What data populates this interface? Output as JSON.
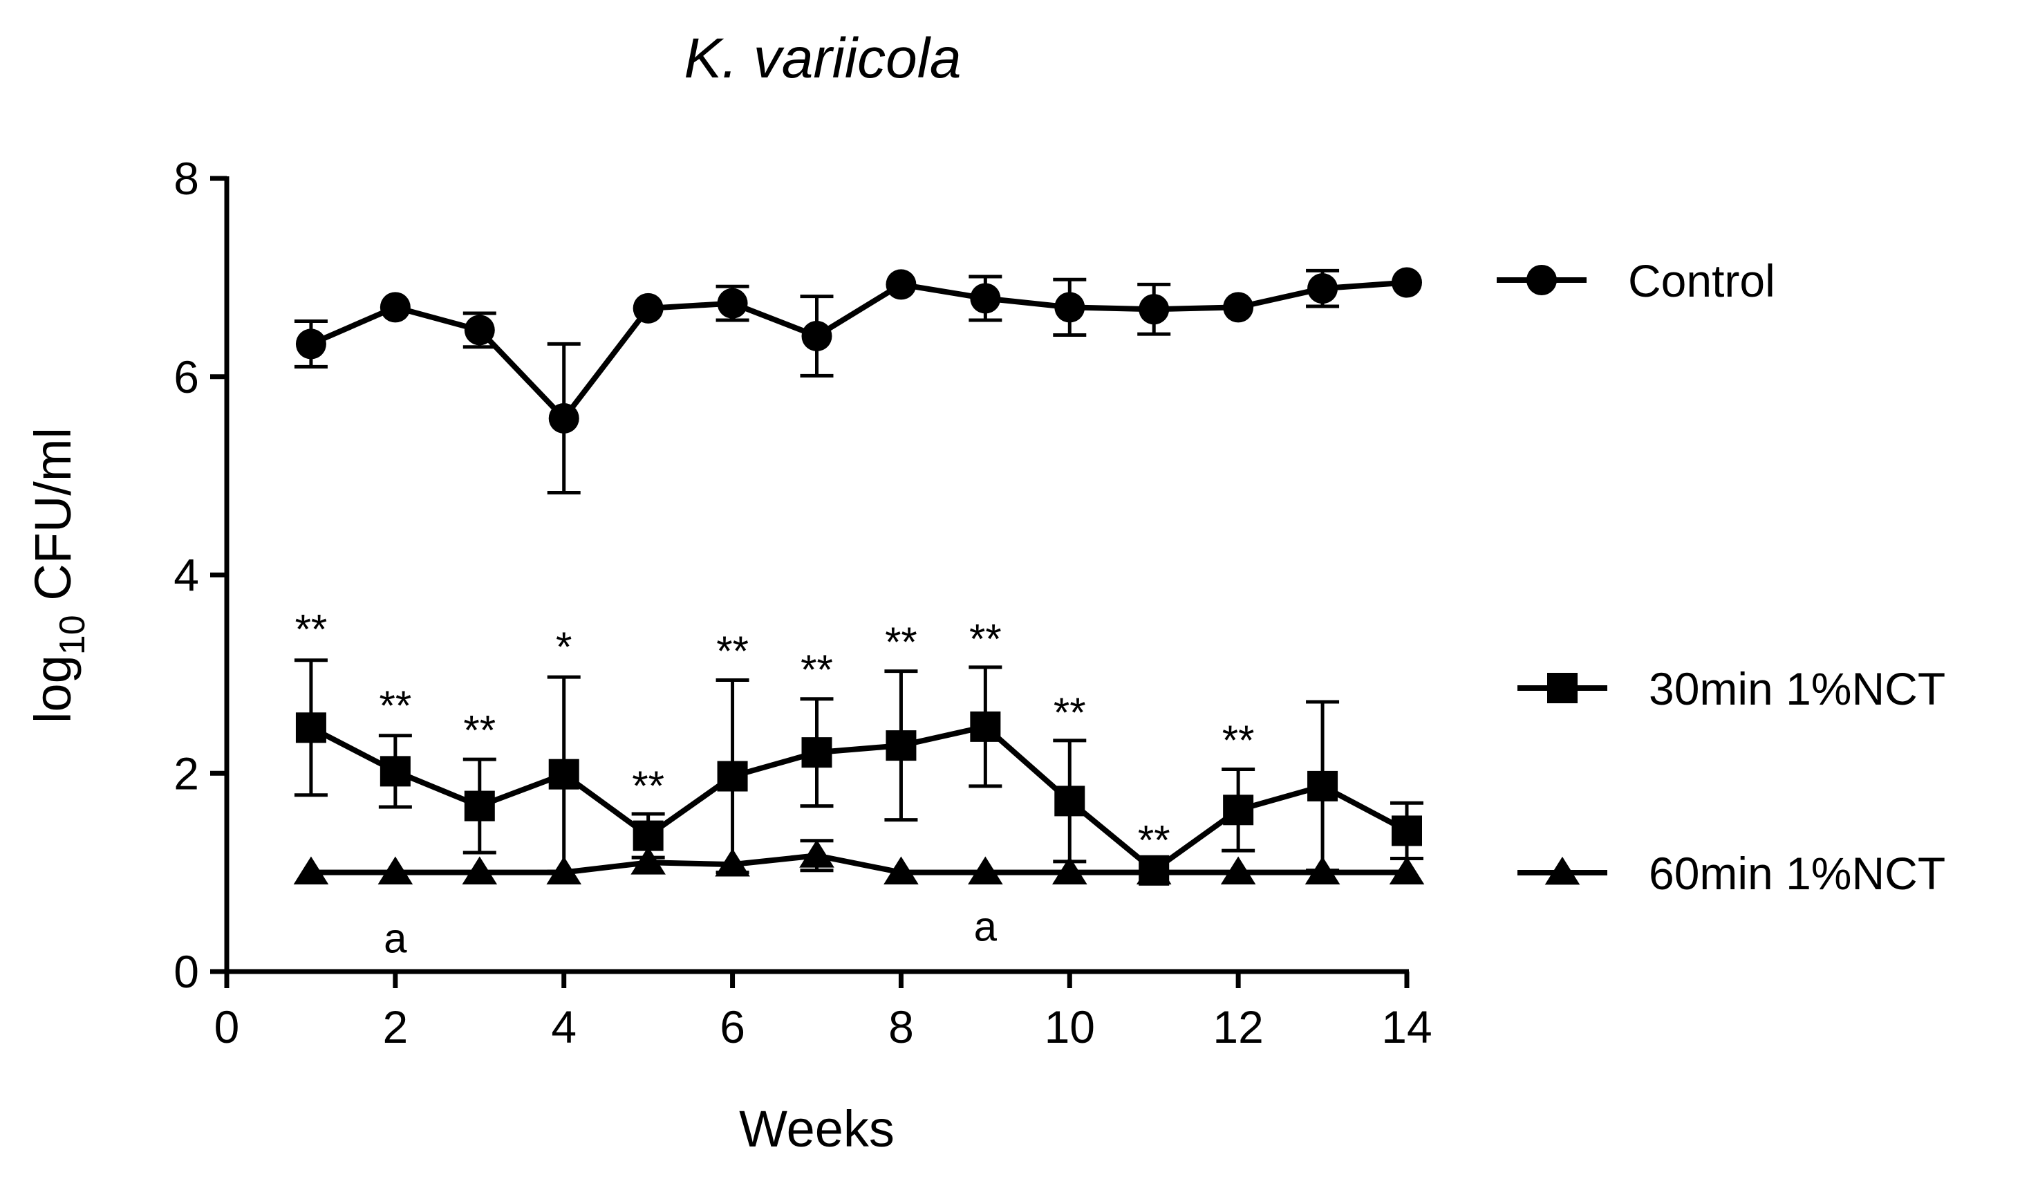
{
  "chart_data": {
    "type": "line",
    "title": "K. variicola",
    "xlabel": "Weeks",
    "ylabel": {
      "prefix": "log",
      "sub": "10",
      "suffix": " CFU/ml"
    },
    "xlim": [
      0,
      14
    ],
    "ylim": [
      0,
      8
    ],
    "xticks": [
      0,
      2,
      4,
      6,
      8,
      10,
      12,
      14
    ],
    "yticks": [
      0,
      2,
      4,
      6,
      8
    ],
    "grid": false,
    "legend_position": "right",
    "series": [
      {
        "name": "Control",
        "marker": "circle",
        "x": [
          1,
          2,
          3,
          4,
          5,
          6,
          7,
          8,
          9,
          10,
          11,
          12,
          13,
          14
        ],
        "y": [
          6.33,
          6.7,
          6.47,
          5.58,
          6.69,
          6.74,
          6.41,
          6.93,
          6.79,
          6.7,
          6.68,
          6.7,
          6.89,
          6.95
        ],
        "err": [
          0.23,
          0,
          0.17,
          0.75,
          0,
          0.17,
          0.4,
          0,
          0.22,
          0.28,
          0.25,
          0,
          0.18,
          0
        ]
      },
      {
        "name": "30min 1%NCT",
        "marker": "square",
        "x": [
          1,
          2,
          3,
          4,
          5,
          6,
          7,
          8,
          9,
          10,
          11,
          12,
          13,
          14
        ],
        "y": [
          2.46,
          2.02,
          1.67,
          1.99,
          1.37,
          1.97,
          2.21,
          2.28,
          2.47,
          1.72,
          1.02,
          1.63,
          1.87,
          1.42
        ],
        "err": [
          0.68,
          0.36,
          0.47,
          0.98,
          0.22,
          0.97,
          0.54,
          0.75,
          0.6,
          0.61,
          0,
          0.41,
          0.85,
          0.28
        ]
      },
      {
        "name": "60min 1%NCT",
        "marker": "triangle",
        "x": [
          1,
          2,
          3,
          4,
          5,
          6,
          7,
          8,
          9,
          10,
          11,
          12,
          13,
          14
        ],
        "y": [
          1.0,
          1.0,
          1.0,
          1.0,
          1.1,
          1.08,
          1.17,
          1.0,
          1.0,
          1.0,
          1.0,
          1.0,
          1.0,
          1.0
        ],
        "err": [
          0,
          0,
          0,
          0,
          0,
          0,
          0.15,
          0,
          0,
          0,
          0,
          0,
          0,
          0
        ]
      }
    ],
    "annotations": [
      {
        "x": 1,
        "y": 3.45,
        "text": "**"
      },
      {
        "x": 2,
        "y": 2.68,
        "text": "**"
      },
      {
        "x": 3,
        "y": 2.43,
        "text": "**"
      },
      {
        "x": 4,
        "y": 3.27,
        "text": "*"
      },
      {
        "x": 5,
        "y": 1.87,
        "text": "**"
      },
      {
        "x": 6,
        "y": 3.23,
        "text": "**"
      },
      {
        "x": 7,
        "y": 3.04,
        "text": "**"
      },
      {
        "x": 8,
        "y": 3.32,
        "text": "**"
      },
      {
        "x": 9,
        "y": 3.35,
        "text": "**"
      },
      {
        "x": 10,
        "y": 2.61,
        "text": "**"
      },
      {
        "x": 11,
        "y": 1.32,
        "text": "**"
      },
      {
        "x": 12,
        "y": 2.33,
        "text": "**"
      },
      {
        "x": 2,
        "y": 0.33,
        "text": "a"
      },
      {
        "x": 9,
        "y": 0.45,
        "text": "a"
      }
    ]
  }
}
